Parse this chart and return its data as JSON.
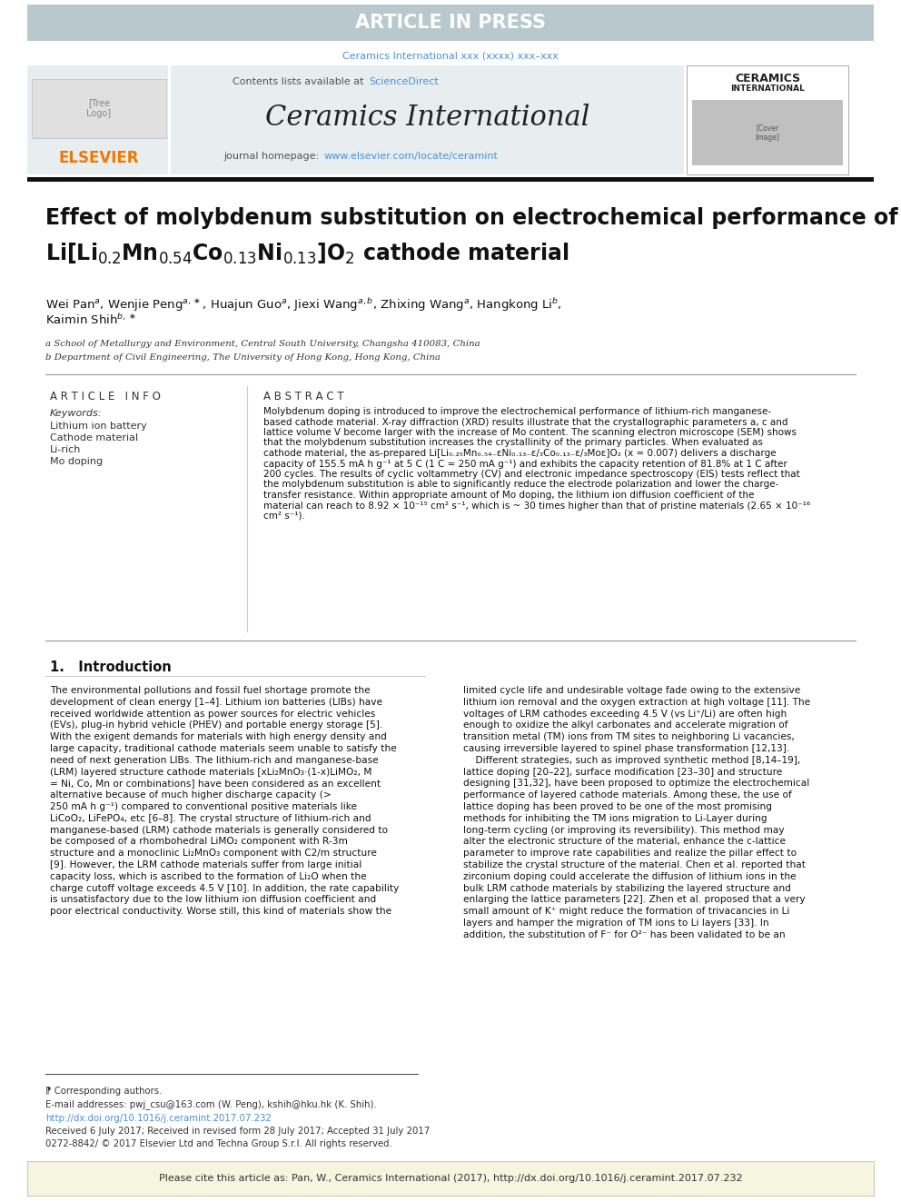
{
  "page_bg": "#ffffff",
  "article_in_press_bg": "#b8c8cc",
  "article_in_press_text": "ARTICLE IN PRESS",
  "article_in_press_color": "#ffffff",
  "journal_ref_color": "#4a90d9",
  "journal_ref": "Ceramics International xxx (xxxx) xxx–xxx",
  "header_bg": "#e8eef0",
  "contents_text": "Contents lists available at ",
  "sciencedirect_text": "ScienceDirect",
  "sciencedirect_color": "#4a90d9",
  "journal_title": "Ceramics International",
  "journal_homepage_text": "journal homepage: ",
  "journal_url": "www.elsevier.com/locate/ceramint",
  "journal_url_color": "#4a90d9",
  "elsevier_color": "#f07800",
  "title_line1": "Effect of molybdenum substitution on electrochemical performance of",
  "affil_a": "a School of Metallurgy and Environment, Central South University, Changsha 410083, China",
  "affil_b": "b Department of Civil Engineering, The University of Hong Kong, Hong Kong, China",
  "article_info_label": "A R T I C L E   I N F O",
  "abstract_label": "A B S T R A C T",
  "keywords_label": "Keywords:",
  "keywords": [
    "Lithium ion battery",
    "Cathode material",
    "Li-rich",
    "Mo doping"
  ],
  "footnote_star": "⁋ Corresponding authors.",
  "footnote_email": "E-mail addresses: pwj_csu@163.com (W. Peng), kshih@hku.hk (K. Shih).",
  "footnote_doi": "http://dx.doi.org/10.1016/j.ceramint.2017.07.232",
  "footnote_received": "Received 6 July 2017; Received in revised form 28 July 2017; Accepted 31 July 2017",
  "footnote_issn": "0272-8842/ © 2017 Elsevier Ltd and Techna Group S.r.l. All rights reserved.",
  "cite_box_text": "Please cite this article as: Pan, W., Ceramics International (2017), http://dx.doi.org/10.1016/j.ceramint.2017.07.232",
  "cite_box_bg": "#f5f5e0",
  "separator_color": "#111111",
  "thin_line_color": "#999999"
}
